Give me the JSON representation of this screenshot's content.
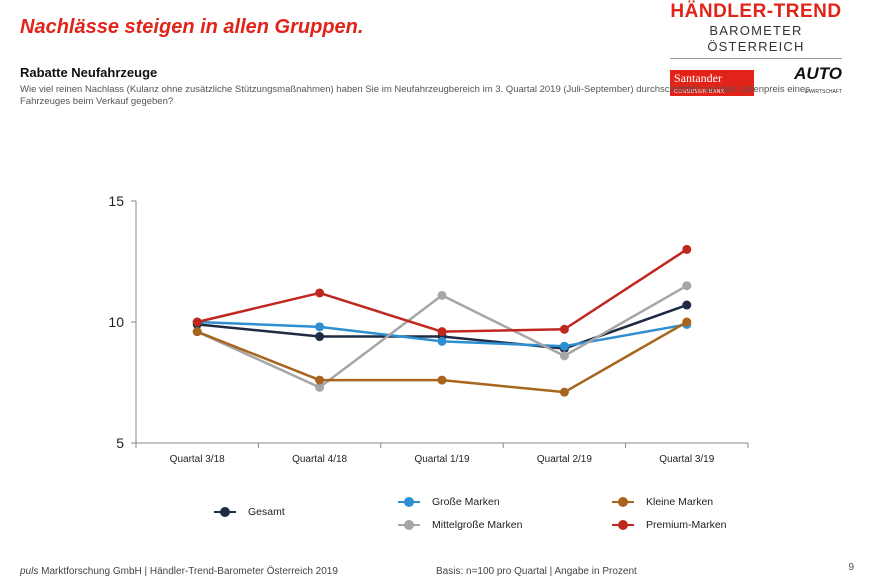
{
  "header": {
    "headline": "Nachlässe steigen in allen Gruppen.",
    "subtitle": "Rabatte Neufahrzeuge",
    "question": "Wie viel reinen Nachlass (Kulanz ohne zusätzliche Stützungsmaßnahmen) haben Sie im Neufahrzeugbereich im 3. Quartal 2019 (Juli-September) durchschnittlich auf den Listenpreis eines Fahrzeuges beim Verkauf gegeben?"
  },
  "brand": {
    "title": "HÄNDLER-TREND",
    "subtitle": "BAROMETER ÖSTERREICH",
    "sponsor_name": "Santander",
    "sponsor_tagline": "CONSUMER BANK",
    "partner_name": "AUTO",
    "partner_tagline": "& WIRTSCHAFT",
    "accent_color": "#e2231a"
  },
  "chart_data": {
    "type": "line",
    "categories": [
      "Quartal 3/18",
      "Quartal 4/18",
      "Quartal 1/19",
      "Quartal 2/19",
      "Quartal 3/19"
    ],
    "ylim": [
      5,
      15
    ],
    "yticks": [
      5,
      10,
      15
    ],
    "grid": false,
    "legend_position": "bottom",
    "series": [
      {
        "name": "Gesamt",
        "color": "#1f2a44",
        "values": [
          9.9,
          9.4,
          9.4,
          8.9,
          10.7
        ]
      },
      {
        "name": "Große Marken",
        "color": "#2e8fd0",
        "values": [
          10.0,
          9.8,
          9.2,
          9.0,
          9.9
        ]
      },
      {
        "name": "Mittelgroße Marken",
        "color": "#a6a6a6",
        "values": [
          9.6,
          7.3,
          11.1,
          8.6,
          11.5
        ]
      },
      {
        "name": "Kleine Marken",
        "color": "#a8651e",
        "values": [
          9.6,
          7.6,
          7.6,
          7.1,
          10.0
        ]
      },
      {
        "name": "Premium-Marken",
        "color": "#c0271f",
        "values": [
          10.0,
          11.2,
          9.6,
          9.7,
          13.0
        ]
      }
    ]
  },
  "footer": {
    "source_brand": "puls",
    "source_rest": " Marktforschung GmbH | Händler-Trend-Barometer Österreich 2019",
    "basis": "Basis: n=100 pro Quartal | Angabe in Prozent",
    "page_number": "9"
  }
}
